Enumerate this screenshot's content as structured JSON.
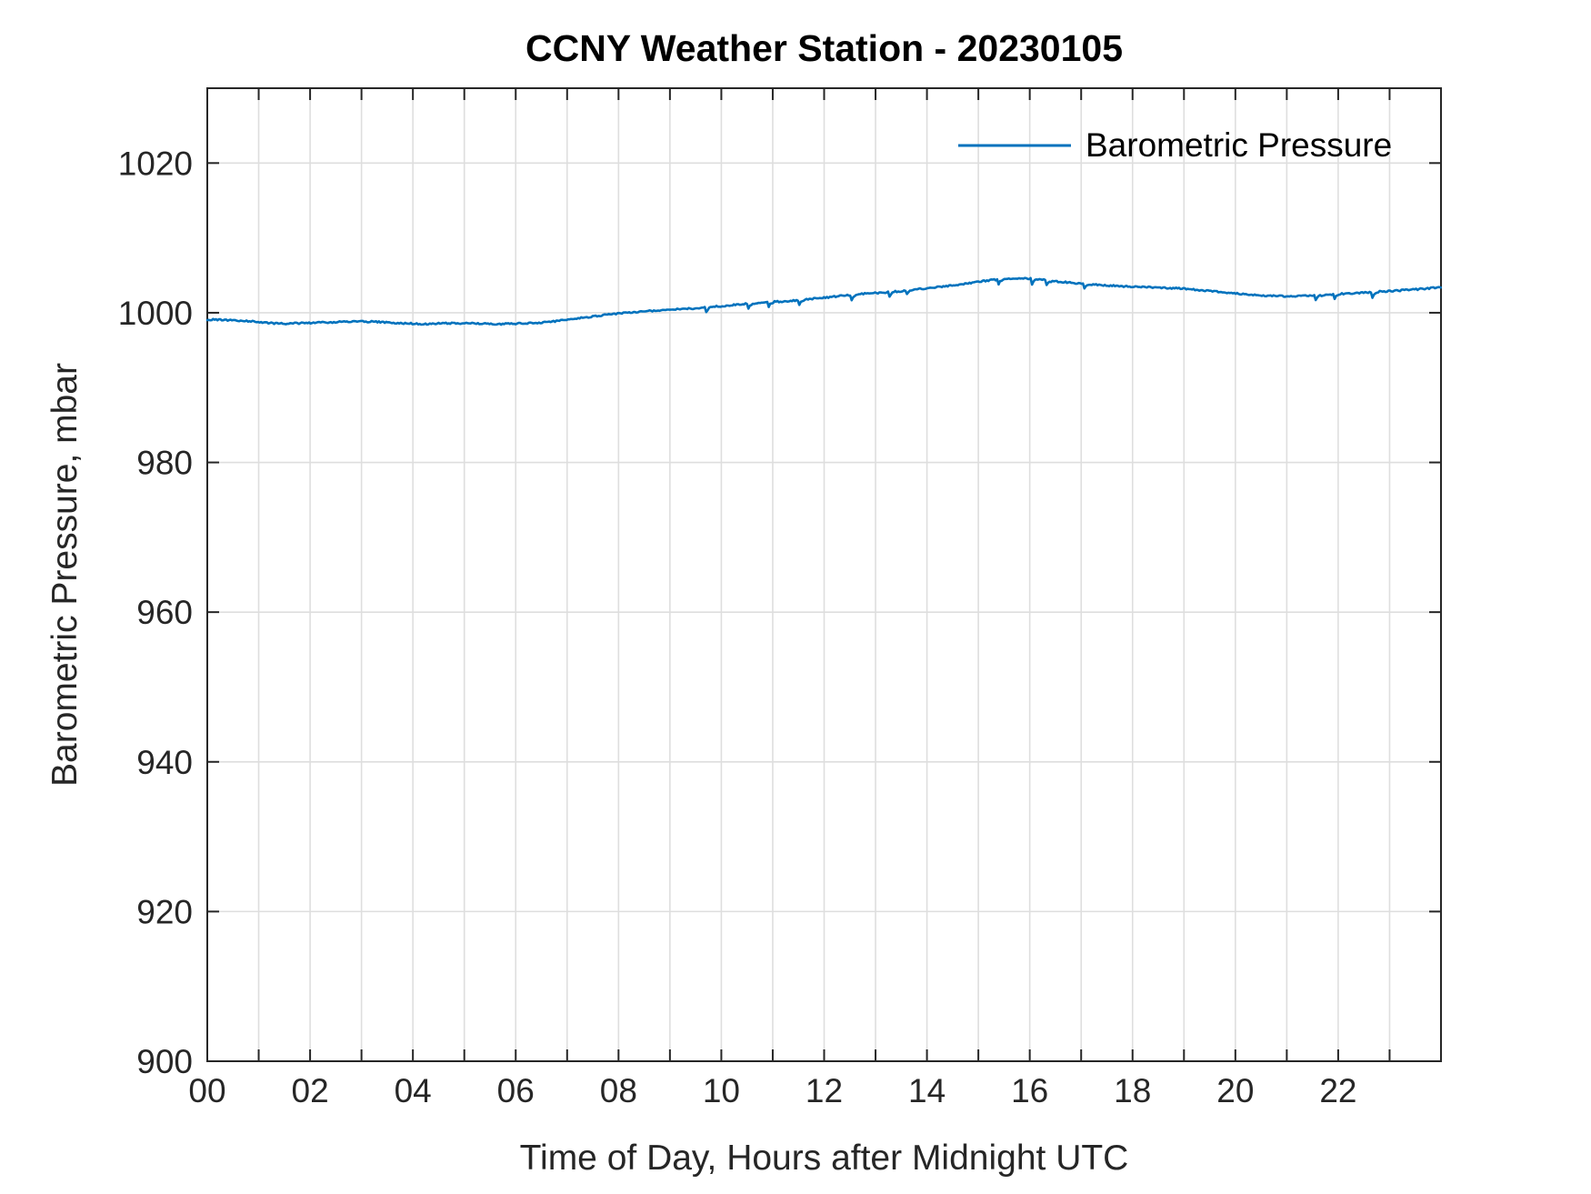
{
  "chart_data": {
    "type": "line",
    "title": "CCNY Weather Station - 20230105",
    "xlabel": "Time of Day, Hours after Midnight UTC",
    "ylabel": "Barometric Pressure, mbar",
    "xlim": [
      0,
      24
    ],
    "ylim": [
      900,
      1030
    ],
    "grid": "on",
    "x_ticks_hours": [
      0,
      1,
      2,
      3,
      4,
      5,
      6,
      7,
      8,
      9,
      10,
      11,
      12,
      13,
      14,
      15,
      16,
      17,
      18,
      19,
      20,
      21,
      22,
      23,
      24
    ],
    "x_tick_labels": [
      "00",
      "02",
      "04",
      "06",
      "08",
      "10",
      "12",
      "14",
      "16",
      "18",
      "20",
      "22"
    ],
    "x_labeled_tick_hours": [
      0,
      2,
      4,
      6,
      8,
      10,
      12,
      14,
      16,
      18,
      20,
      22
    ],
    "y_ticks": [
      900,
      920,
      940,
      960,
      980,
      1000,
      1020
    ],
    "colors": {
      "line": "#0072BD",
      "axis": "#262626",
      "grid": "#dedede",
      "title_text": "#000000",
      "tick_text": "#262626"
    },
    "legend": {
      "position": "top-right-inside",
      "entries": [
        {
          "label": "Barometric Pressure",
          "color": "#0072BD"
        }
      ]
    },
    "series": [
      {
        "name": "Barometric Pressure",
        "color": "#0072BD",
        "x_hours": [
          0,
          0.25,
          0.5,
          0.75,
          1,
          1.25,
          1.5,
          1.75,
          2,
          2.25,
          2.5,
          2.75,
          3,
          3.25,
          3.5,
          3.75,
          4,
          4.25,
          4.5,
          4.75,
          5,
          5.25,
          5.5,
          5.75,
          6,
          6.25,
          6.5,
          6.75,
          7,
          7.25,
          7.5,
          7.75,
          8,
          8.25,
          8.5,
          8.75,
          9,
          9.25,
          9.5,
          9.75,
          10,
          10.25,
          10.5,
          10.75,
          11,
          11.25,
          11.5,
          11.75,
          12,
          12.25,
          12.5,
          12.75,
          13,
          13.25,
          13.5,
          13.75,
          14,
          14.25,
          14.5,
          14.75,
          15,
          15.25,
          15.5,
          15.75,
          16,
          16.25,
          16.5,
          16.75,
          17,
          17.25,
          17.5,
          17.75,
          18,
          18.25,
          18.5,
          18.75,
          19,
          19.25,
          19.5,
          19.75,
          20,
          20.25,
          20.5,
          20.75,
          21,
          21.25,
          21.5,
          21.75,
          22,
          22.25,
          22.5,
          22.75,
          23,
          23.25,
          23.5,
          23.75,
          24
        ],
        "pressure_mbar": [
          999.1,
          999.05,
          999.0,
          998.9,
          998.75,
          998.6,
          998.55,
          998.6,
          998.65,
          998.7,
          998.75,
          998.8,
          998.85,
          998.8,
          998.7,
          998.6,
          998.55,
          998.5,
          998.55,
          998.6,
          998.6,
          998.55,
          998.5,
          998.5,
          998.55,
          998.6,
          998.7,
          998.85,
          999.1,
          999.3,
          999.5,
          999.7,
          999.9,
          1000.05,
          1000.2,
          1000.3,
          1000.4,
          1000.5,
          1000.6,
          1000.75,
          1000.9,
          1001.05,
          1001.2,
          1001.3,
          1001.45,
          1001.55,
          1001.7,
          1001.85,
          1002.0,
          1002.2,
          1002.35,
          1002.55,
          1002.65,
          1002.75,
          1002.9,
          1003.1,
          1003.25,
          1003.45,
          1003.65,
          1003.9,
          1004.15,
          1004.35,
          1004.5,
          1004.6,
          1004.55,
          1004.4,
          1004.2,
          1004.05,
          1003.9,
          1003.75,
          1003.65,
          1003.55,
          1003.5,
          1003.45,
          1003.35,
          1003.3,
          1003.2,
          1003.05,
          1002.9,
          1002.75,
          1002.6,
          1002.45,
          1002.3,
          1002.25,
          1002.2,
          1002.25,
          1002.3,
          1002.4,
          1002.5,
          1002.6,
          1002.7,
          1002.8,
          1002.9,
          1003.0,
          1003.1,
          1003.25,
          1003.4
        ]
      }
    ]
  }
}
